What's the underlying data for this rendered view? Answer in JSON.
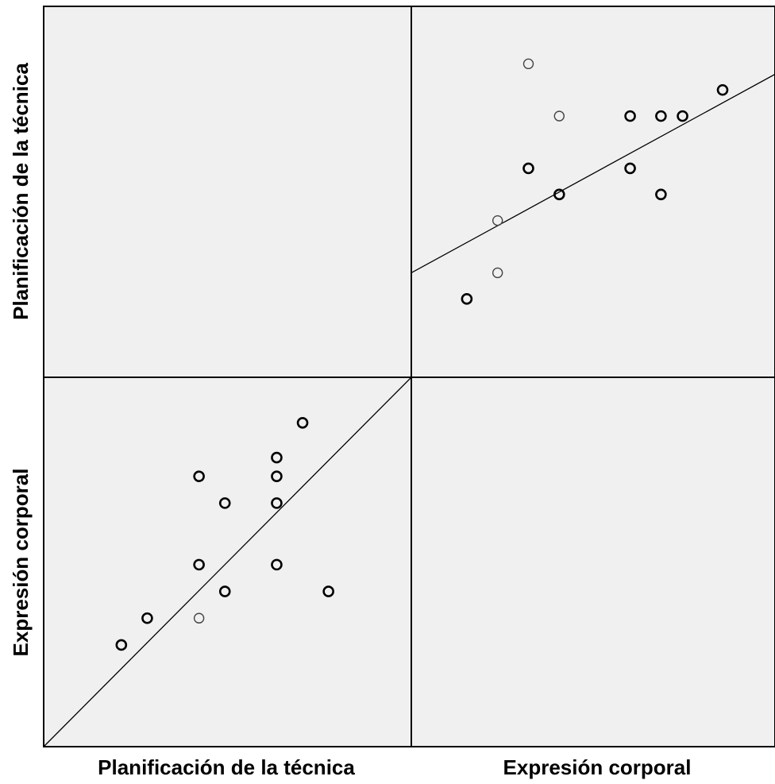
{
  "chart_data": {
    "type": "scatter",
    "variables": [
      "Planificación de la técnica",
      "Expresión corporal"
    ],
    "panels": [
      {
        "position": "top-right",
        "x_variable": "Expresión corporal",
        "y_variable": "Planificación de la técnica",
        "points": [
          {
            "x": 7.0,
            "y": 4.7,
            "count": 2
          },
          {
            "x": 8.0,
            "y": 5.2,
            "count": 1
          },
          {
            "x": 8.0,
            "y": 6.2,
            "count": 1
          },
          {
            "x": 9.0,
            "y": 7.2,
            "count": 2
          },
          {
            "x": 9.0,
            "y": 9.2,
            "count": 1
          },
          {
            "x": 10.0,
            "y": 6.7,
            "count": 2
          },
          {
            "x": 10.0,
            "y": 8.2,
            "count": 1
          },
          {
            "x": 12.3,
            "y": 7.2,
            "count": 2
          },
          {
            "x": 12.3,
            "y": 8.2,
            "count": 2
          },
          {
            "x": 13.3,
            "y": 6.7,
            "count": 2
          },
          {
            "x": 13.3,
            "y": 8.2,
            "count": 2
          },
          {
            "x": 14.0,
            "y": 8.2,
            "count": 2
          },
          {
            "x": 15.3,
            "y": 8.7,
            "count": 2
          }
        ],
        "fit_line": {
          "x": [
            5.2,
            17.0
          ],
          "y": [
            5.2,
            9.0
          ]
        }
      },
      {
        "position": "bottom-left",
        "x_variable": "Planificación de la técnica",
        "y_variable": "Expresión corporal",
        "points": [
          {
            "x": 4.7,
            "y": 7.0,
            "count": 2
          },
          {
            "x": 5.2,
            "y": 8.0,
            "count": 2
          },
          {
            "x": 6.2,
            "y": 8.0,
            "count": 1
          },
          {
            "x": 6.2,
            "y": 10.0,
            "count": 2
          },
          {
            "x": 6.2,
            "y": 13.3,
            "count": 2
          },
          {
            "x": 6.7,
            "y": 9.0,
            "count": 2
          },
          {
            "x": 6.7,
            "y": 12.3,
            "count": 2
          },
          {
            "x": 7.7,
            "y": 10.0,
            "count": 2
          },
          {
            "x": 7.7,
            "y": 12.3,
            "count": 2
          },
          {
            "x": 7.7,
            "y": 13.3,
            "count": 2
          },
          {
            "x": 7.7,
            "y": 14.0,
            "count": 2
          },
          {
            "x": 8.2,
            "y": 15.3,
            "count": 2
          },
          {
            "x": 8.7,
            "y": 9.0,
            "count": 2
          }
        ],
        "fit_line": {
          "x": [
            3.2,
            10.3
          ],
          "y": [
            3.2,
            17.0
          ]
        }
      }
    ],
    "xlim": {
      "Planificación de la técnica": [
        3.2,
        10.3
      ],
      "Expresión corporal": [
        5.2,
        17.0
      ]
    },
    "ylim": {
      "Planificación de la técnica": [
        3.2,
        10.3
      ],
      "Expresión corporal": [
        3.2,
        17.0
      ]
    },
    "grid": false
  },
  "labels": {
    "row_top": "Planificación de la técnica",
    "row_bottom": "Expresión corporal",
    "col_left": "Planificación de la técnica",
    "col_right": "Expresión corporal"
  }
}
